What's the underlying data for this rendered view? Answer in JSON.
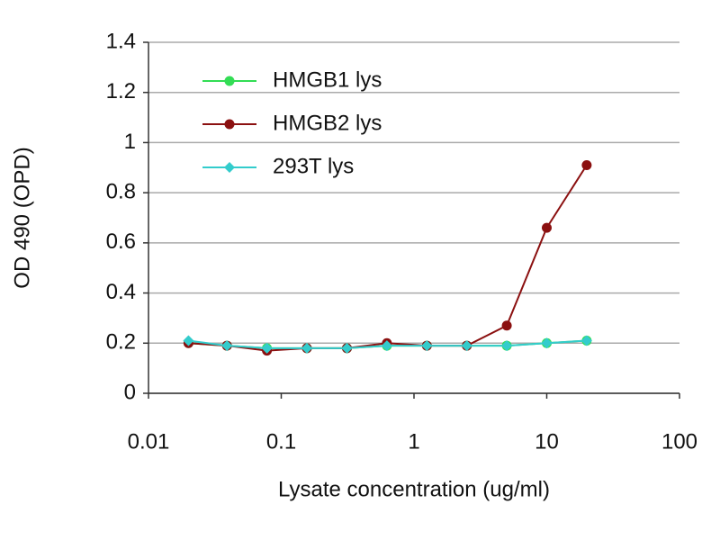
{
  "chart_data": {
    "type": "line",
    "x_label": "Lysate concentration (ug/ml)",
    "y_label": "OD 490 (OPD)",
    "x": [
      0.02,
      0.039,
      0.078,
      0.156,
      0.3125,
      0.625,
      1.25,
      2.5,
      5,
      10,
      20
    ],
    "series": [
      {
        "name": "HMGB1 lys",
        "color": "#33dd55",
        "marker": "circle",
        "values": [
          0.2,
          0.19,
          0.18,
          0.18,
          0.18,
          0.19,
          0.19,
          0.19,
          0.19,
          0.2,
          0.21
        ]
      },
      {
        "name": "HMGB2 lys",
        "color": "#8b1010",
        "marker": "circle",
        "values": [
          0.2,
          0.19,
          0.17,
          0.18,
          0.18,
          0.2,
          0.19,
          0.19,
          0.27,
          0.66,
          0.91
        ]
      },
      {
        "name": "293T lys",
        "color": "#33cccc",
        "marker": "diamond",
        "values": [
          0.21,
          0.19,
          0.18,
          0.18,
          0.18,
          0.19,
          0.19,
          0.19,
          0.19,
          0.2,
          0.21
        ]
      }
    ],
    "x_log": true,
    "xlim": [
      0.01,
      100
    ],
    "xticks": [
      0.01,
      0.1,
      1,
      10,
      100
    ],
    "ylim": [
      0,
      1.4
    ],
    "yticks": [
      0,
      0.2,
      0.4,
      0.6,
      0.8,
      1,
      1.2,
      1.4
    ],
    "grid": true,
    "legend": "upper-left"
  }
}
